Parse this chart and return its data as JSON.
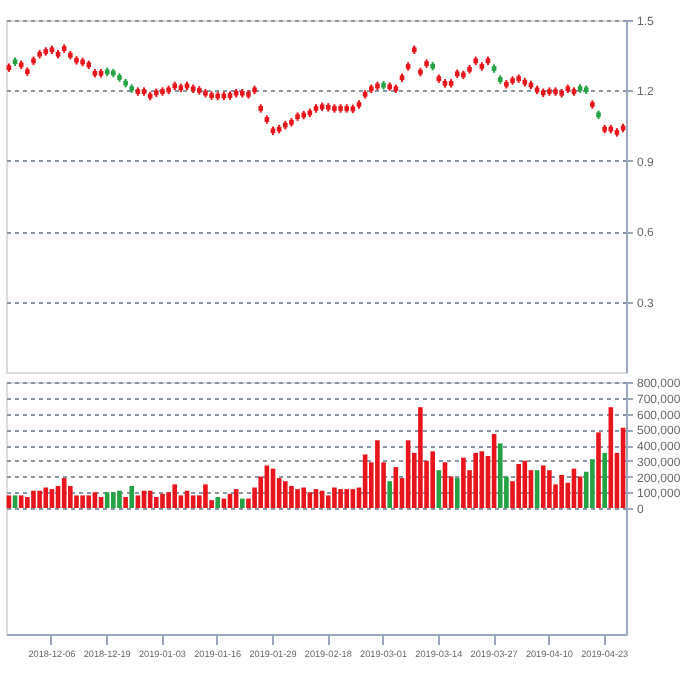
{
  "chart_data": [
    {
      "type": "candlestick",
      "categories": [
        null,
        null,
        null,
        null,
        null,
        null,
        null,
        "2018-12-06",
        null,
        null,
        null,
        null,
        null,
        null,
        null,
        null,
        "2018-12-19",
        null,
        null,
        null,
        null,
        null,
        null,
        null,
        null,
        "2019-01-03",
        null,
        null,
        null,
        null,
        null,
        null,
        null,
        null,
        "2019-01-16",
        null,
        null,
        null,
        null,
        null,
        null,
        null,
        null,
        "2019-01-29",
        null,
        null,
        null,
        null,
        null,
        null,
        null,
        null,
        "2019-02-18",
        null,
        null,
        null,
        null,
        null,
        null,
        null,
        null,
        "2019-03-01",
        null,
        null,
        null,
        null,
        null,
        null,
        null,
        null,
        "2019-03-14",
        null,
        null,
        null,
        null,
        null,
        null,
        null,
        null,
        "2019-03-27",
        null,
        null,
        null,
        null,
        null,
        null,
        null,
        null,
        "2019-04-10",
        null,
        null,
        null,
        null,
        null,
        null,
        null,
        null,
        "2019-04-23",
        null,
        null,
        null
      ],
      "ohlc": [
        [
          1.287,
          1.315,
          1.279,
          1.307
        ],
        [
          1.332,
          1.34,
          1.304,
          1.312
        ],
        [
          1.299,
          1.327,
          1.291,
          1.319
        ],
        [
          1.27,
          1.298,
          1.262,
          1.29
        ],
        [
          1.316,
          1.344,
          1.308,
          1.336
        ],
        [
          1.344,
          1.372,
          1.336,
          1.364
        ],
        [
          1.356,
          1.384,
          1.348,
          1.376
        ],
        [
          1.363,
          1.391,
          1.355,
          1.383
        ],
        [
          1.344,
          1.372,
          1.336,
          1.364
        ],
        [
          1.368,
          1.396,
          1.36,
          1.388
        ],
        [
          1.34,
          1.368,
          1.332,
          1.36
        ],
        [
          1.318,
          1.346,
          1.31,
          1.338
        ],
        [
          1.311,
          1.339,
          1.303,
          1.331
        ],
        [
          1.299,
          1.327,
          1.291,
          1.319
        ],
        [
          1.263,
          1.291,
          1.255,
          1.283
        ],
        [
          1.263,
          1.291,
          1.255,
          1.283
        ],
        [
          1.289,
          1.297,
          1.261,
          1.269
        ],
        [
          1.284,
          1.292,
          1.256,
          1.264
        ],
        [
          1.265,
          1.273,
          1.237,
          1.245
        ],
        [
          1.241,
          1.249,
          1.213,
          1.221
        ],
        [
          1.218,
          1.226,
          1.19,
          1.198
        ],
        [
          1.185,
          1.213,
          1.177,
          1.205
        ],
        [
          1.185,
          1.213,
          1.177,
          1.205
        ],
        [
          1.166,
          1.194,
          1.158,
          1.186
        ],
        [
          1.18,
          1.208,
          1.172,
          1.2
        ],
        [
          1.185,
          1.213,
          1.177,
          1.205
        ],
        [
          1.192,
          1.22,
          1.184,
          1.212
        ],
        [
          1.209,
          1.237,
          1.201,
          1.229
        ],
        [
          1.201,
          1.229,
          1.193,
          1.221
        ],
        [
          1.209,
          1.237,
          1.201,
          1.229
        ],
        [
          1.197,
          1.225,
          1.189,
          1.217
        ],
        [
          1.19,
          1.218,
          1.182,
          1.21
        ],
        [
          1.178,
          1.206,
          1.17,
          1.198
        ],
        [
          1.168,
          1.196,
          1.16,
          1.188
        ],
        [
          1.166,
          1.194,
          1.158,
          1.186
        ],
        [
          1.166,
          1.194,
          1.158,
          1.186
        ],
        [
          1.168,
          1.196,
          1.16,
          1.188
        ],
        [
          1.178,
          1.206,
          1.17,
          1.198
        ],
        [
          1.178,
          1.206,
          1.17,
          1.198
        ],
        [
          1.173,
          1.201,
          1.165,
          1.193
        ],
        [
          1.192,
          1.22,
          1.184,
          1.212
        ],
        [
          1.113,
          1.141,
          1.105,
          1.133
        ],
        [
          1.066,
          1.094,
          1.058,
          1.086
        ],
        [
          1.018,
          1.046,
          1.01,
          1.038
        ],
        [
          1.025,
          1.053,
          1.017,
          1.045
        ],
        [
          1.042,
          1.07,
          1.034,
          1.062
        ],
        [
          1.054,
          1.082,
          1.046,
          1.074
        ],
        [
          1.078,
          1.106,
          1.07,
          1.098
        ],
        [
          1.085,
          1.113,
          1.077,
          1.105
        ],
        [
          1.094,
          1.122,
          1.086,
          1.114
        ],
        [
          1.113,
          1.141,
          1.105,
          1.133
        ],
        [
          1.12,
          1.148,
          1.112,
          1.14
        ],
        [
          1.118,
          1.146,
          1.11,
          1.138
        ],
        [
          1.113,
          1.141,
          1.105,
          1.133
        ],
        [
          1.113,
          1.141,
          1.105,
          1.133
        ],
        [
          1.113,
          1.141,
          1.105,
          1.133
        ],
        [
          1.111,
          1.139,
          1.103,
          1.131
        ],
        [
          1.13,
          1.158,
          1.122,
          1.15
        ],
        [
          1.173,
          1.201,
          1.165,
          1.193
        ],
        [
          1.197,
          1.225,
          1.189,
          1.217
        ],
        [
          1.209,
          1.237,
          1.201,
          1.229
        ],
        [
          1.232,
          1.24,
          1.204,
          1.212
        ],
        [
          1.206,
          1.234,
          1.198,
          1.226
        ],
        [
          1.197,
          1.225,
          1.189,
          1.217
        ],
        [
          1.244,
          1.272,
          1.236,
          1.264
        ],
        [
          1.292,
          1.32,
          1.284,
          1.312
        ],
        [
          1.363,
          1.391,
          1.355,
          1.383
        ],
        [
          1.268,
          1.296,
          1.26,
          1.288
        ],
        [
          1.304,
          1.332,
          1.296,
          1.324
        ],
        [
          1.313,
          1.321,
          1.285,
          1.293
        ],
        [
          1.24,
          1.268,
          1.232,
          1.26
        ],
        [
          1.22,
          1.248,
          1.212,
          1.24
        ],
        [
          1.22,
          1.248,
          1.212,
          1.24
        ],
        [
          1.261,
          1.289,
          1.253,
          1.281
        ],
        [
          1.256,
          1.284,
          1.248,
          1.276
        ],
        [
          1.28,
          1.308,
          1.272,
          1.3
        ],
        [
          1.316,
          1.344,
          1.308,
          1.336
        ],
        [
          1.292,
          1.32,
          1.284,
          1.312
        ],
        [
          1.316,
          1.344,
          1.308,
          1.336
        ],
        [
          1.303,
          1.311,
          1.275,
          1.283
        ],
        [
          1.256,
          1.264,
          1.228,
          1.236
        ],
        [
          1.216,
          1.244,
          1.208,
          1.236
        ],
        [
          1.232,
          1.26,
          1.224,
          1.252
        ],
        [
          1.24,
          1.268,
          1.232,
          1.26
        ],
        [
          1.225,
          1.253,
          1.217,
          1.245
        ],
        [
          1.213,
          1.241,
          1.205,
          1.233
        ],
        [
          1.192,
          1.22,
          1.184,
          1.212
        ],
        [
          1.18,
          1.208,
          1.172,
          1.2
        ],
        [
          1.185,
          1.213,
          1.177,
          1.205
        ],
        [
          1.185,
          1.213,
          1.177,
          1.205
        ],
        [
          1.178,
          1.206,
          1.17,
          1.198
        ],
        [
          1.197,
          1.225,
          1.189,
          1.217
        ],
        [
          1.185,
          1.213,
          1.177,
          1.205
        ],
        [
          1.218,
          1.226,
          1.19,
          1.198
        ],
        [
          1.213,
          1.221,
          1.185,
          1.193
        ],
        [
          1.13,
          1.158,
          1.122,
          1.15
        ],
        [
          1.106,
          1.114,
          1.078,
          1.086
        ],
        [
          1.025,
          1.053,
          1.017,
          1.045
        ],
        [
          1.025,
          1.053,
          1.017,
          1.045
        ],
        [
          1.011,
          1.039,
          1.003,
          1.031
        ],
        [
          1.03,
          1.058,
          1.022,
          1.05
        ]
      ],
      "ylim": [
        0,
        1.5
      ],
      "yticks": [
        0.3,
        0.6,
        0.9,
        1.2,
        1.5
      ],
      "grid": "y",
      "tick_labels": "y"
    },
    {
      "type": "bar",
      "categories": [
        null,
        null,
        null,
        null,
        null,
        null,
        null,
        "2018-12-06",
        null,
        null,
        null,
        null,
        null,
        null,
        null,
        null,
        "2018-12-19",
        null,
        null,
        null,
        null,
        null,
        null,
        null,
        null,
        "2019-01-03",
        null,
        null,
        null,
        null,
        null,
        null,
        null,
        null,
        "2019-01-16",
        null,
        null,
        null,
        null,
        null,
        null,
        null,
        null,
        "2019-01-29",
        null,
        null,
        null,
        null,
        null,
        null,
        null,
        null,
        "2019-02-18",
        null,
        null,
        null,
        null,
        null,
        null,
        null,
        null,
        "2019-03-01",
        null,
        null,
        null,
        null,
        null,
        null,
        null,
        null,
        "2019-03-14",
        null,
        null,
        null,
        null,
        null,
        null,
        null,
        null,
        "2019-03-27",
        null,
        null,
        null,
        null,
        null,
        null,
        null,
        null,
        "2019-04-10",
        null,
        null,
        null,
        null,
        null,
        null,
        null,
        null,
        "2019-04-23",
        null,
        null,
        null
      ],
      "values": [
        80000,
        80000,
        80000,
        70000,
        110000,
        110000,
        130000,
        120000,
        140000,
        190000,
        140000,
        80000,
        80000,
        80000,
        100000,
        70000,
        100000,
        100000,
        110000,
        70000,
        140000,
        80000,
        110000,
        110000,
        70000,
        90000,
        100000,
        150000,
        80000,
        110000,
        80000,
        80000,
        150000,
        50000,
        70000,
        60000,
        90000,
        120000,
        60000,
        60000,
        130000,
        200000,
        270000,
        250000,
        190000,
        170000,
        140000,
        120000,
        130000,
        100000,
        120000,
        110000,
        80000,
        130000,
        120000,
        120000,
        120000,
        130000,
        340000,
        290000,
        430000,
        290000,
        170000,
        260000,
        190000,
        430000,
        350000,
        640000,
        300000,
        360000,
        240000,
        290000,
        200000,
        190000,
        320000,
        240000,
        350000,
        360000,
        330000,
        470000,
        410000,
        200000,
        170000,
        280000,
        300000,
        240000,
        240000,
        270000,
        240000,
        150000,
        210000,
        160000,
        250000,
        200000,
        230000,
        310000,
        480000,
        350000,
        640000,
        350000,
        510000
      ],
      "colors": [
        "#e8161c",
        "#25a244",
        "#e8161c",
        "#e8161c",
        "#e8161c",
        "#e8161c",
        "#e8161c",
        "#e8161c",
        "#e8161c",
        "#e8161c",
        "#e8161c",
        "#e8161c",
        "#e8161c",
        "#e8161c",
        "#e8161c",
        "#e8161c",
        "#25a244",
        "#25a244",
        "#25a244",
        "#e8161c",
        "#25a244",
        "#e8161c",
        "#e8161c",
        "#e8161c",
        "#e8161c",
        "#e8161c",
        "#e8161c",
        "#e8161c",
        "#e8161c",
        "#e8161c",
        "#e8161c",
        "#e8161c",
        "#e8161c",
        "#e8161c",
        "#25a244",
        "#e8161c",
        "#e8161c",
        "#e8161c",
        "#25a244",
        "#e8161c",
        "#e8161c",
        "#e8161c",
        "#e8161c",
        "#e8161c",
        "#e8161c",
        "#e8161c",
        "#e8161c",
        "#e8161c",
        "#e8161c",
        "#e8161c",
        "#e8161c",
        "#e8161c",
        "#e8161c",
        "#e8161c",
        "#e8161c",
        "#e8161c",
        "#e8161c",
        "#e8161c",
        "#e8161c",
        "#e8161c",
        "#e8161c",
        "#e8161c",
        "#25a244",
        "#e8161c",
        "#e8161c",
        "#e8161c",
        "#e8161c",
        "#e8161c",
        "#e8161c",
        "#e8161c",
        "#25a244",
        "#e8161c",
        "#e8161c",
        "#25a244",
        "#e8161c",
        "#e8161c",
        "#e8161c",
        "#e8161c",
        "#e8161c",
        "#e8161c",
        "#25a244",
        "#25a244",
        "#e8161c",
        "#e8161c",
        "#e8161c",
        "#e8161c",
        "#25a244",
        "#e8161c",
        "#e8161c",
        "#e8161c",
        "#e8161c",
        "#e8161c",
        "#e8161c",
        "#e8161c",
        "#25a244",
        "#25a244",
        "#e8161c",
        "#25a244",
        "#e8161c",
        "#e8161c",
        "#e8161c"
      ],
      "ylim": [
        -800000,
        800000
      ],
      "yticks": [
        {
          "value": 0,
          "label": "0"
        },
        {
          "value": 100000,
          "label": "100,000"
        },
        {
          "value": 200000,
          "label": "200,000"
        },
        {
          "value": 300000,
          "label": "300,000"
        },
        {
          "value": 400000,
          "label": "400,000"
        },
        {
          "value": 500000,
          "label": "500,000"
        },
        {
          "value": 600000,
          "label": "600,000"
        },
        {
          "value": 700000,
          "label": "700,000"
        },
        {
          "value": 800000,
          "label": "800,000"
        }
      ],
      "grid": "y"
    }
  ]
}
